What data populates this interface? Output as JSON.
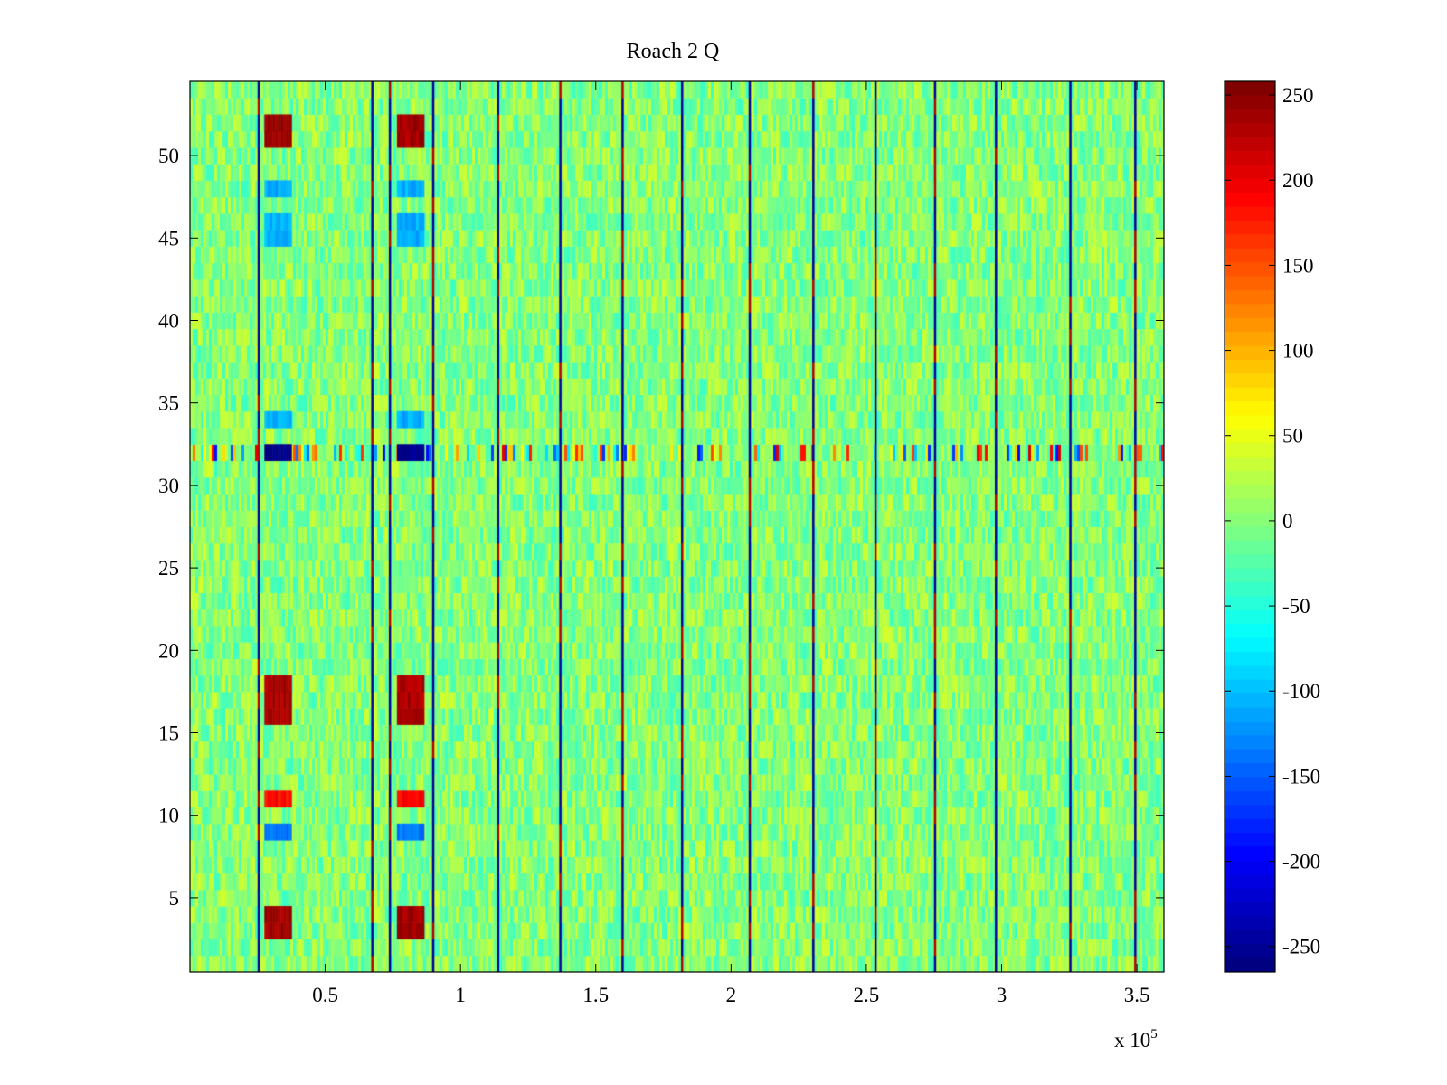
{
  "chart_data": {
    "type": "heatmap",
    "title": "Roach 2 Q",
    "xlabel": "",
    "ylabel": "",
    "x_range": [
      0,
      360000
    ],
    "y_range": [
      0.5,
      54.5
    ],
    "x_ticks": [
      50000,
      100000,
      150000,
      200000,
      250000,
      300000,
      350000
    ],
    "x_tick_labels": [
      "0.5",
      "1",
      "1.5",
      "2",
      "2.5",
      "3",
      "3.5"
    ],
    "x_exponent_label": "x 10",
    "x_exponent_power": "5",
    "y_ticks": [
      5,
      10,
      15,
      20,
      25,
      30,
      35,
      40,
      45,
      50
    ],
    "y_tick_labels": [
      "5",
      "10",
      "15",
      "20",
      "25",
      "30",
      "35",
      "40",
      "45",
      "50"
    ],
    "rows": 54,
    "colormap": "jet",
    "clim": [
      -265,
      258
    ],
    "colorbar_ticks": [
      250,
      200,
      150,
      100,
      50,
      0,
      -50,
      -100,
      -150,
      -200,
      -250
    ],
    "colorbar_tick_labels": [
      "250",
      "200",
      "150",
      "100",
      "50",
      "0",
      "-50",
      "-100",
      "-150",
      "-200",
      "-250"
    ],
    "background_value_range": [
      -40,
      40
    ],
    "vertical_spike_lines_x": [
      25000,
      67000,
      73500,
      89500,
      113500,
      136500,
      159500,
      181500,
      206500,
      230000,
      253000,
      275000,
      297500,
      325000,
      349000
    ],
    "strong_bursts": [
      {
        "x_start": 27500,
        "x_end": 37500,
        "rows": [
          3,
          4
        ],
        "value": 240
      },
      {
        "x_start": 76500,
        "x_end": 86500,
        "rows": [
          3,
          4
        ],
        "value": 240
      },
      {
        "x_start": 27500,
        "x_end": 37500,
        "rows": [
          16,
          17,
          18
        ],
        "value": 235
      },
      {
        "x_start": 76500,
        "x_end": 86500,
        "rows": [
          16,
          17,
          18
        ],
        "value": 235
      },
      {
        "x_start": 27500,
        "x_end": 37500,
        "rows": [
          51,
          52
        ],
        "value": 240
      },
      {
        "x_start": 76500,
        "x_end": 86500,
        "rows": [
          51,
          52
        ],
        "value": 240
      },
      {
        "x_start": 27500,
        "x_end": 37500,
        "rows": [
          11
        ],
        "value": 190
      },
      {
        "x_start": 76500,
        "x_end": 86500,
        "rows": [
          11
        ],
        "value": 190
      },
      {
        "x_start": 27500,
        "x_end": 37500,
        "rows": [
          9
        ],
        "value": -140
      },
      {
        "x_start": 76500,
        "x_end": 86500,
        "rows": [
          9
        ],
        "value": -140
      },
      {
        "x_start": 27500,
        "x_end": 37500,
        "rows": [
          34,
          45,
          46,
          48
        ],
        "value": -110
      },
      {
        "x_start": 76500,
        "x_end": 86500,
        "rows": [
          34,
          45,
          46,
          48
        ],
        "value": -110
      },
      {
        "x_start": 27500,
        "x_end": 37500,
        "rows": [
          32
        ],
        "value": -255
      },
      {
        "x_start": 76500,
        "x_end": 86500,
        "rows": [
          32
        ],
        "value": -255
      }
    ],
    "row_32_noisy_band": {
      "row": 32,
      "value_range": [
        -200,
        220
      ]
    }
  }
}
